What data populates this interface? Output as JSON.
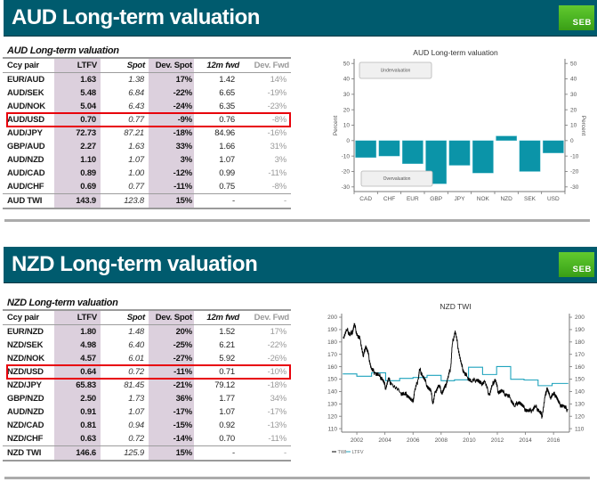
{
  "sections": [
    {
      "banner_title": "AUD Long-term valuation",
      "logo_text": "SEB",
      "table": {
        "title": "AUD Long-term valuation",
        "columns": [
          "Ccy pair",
          "LTFV",
          "Spot",
          "Dev. Spot",
          "12m fwd",
          "Dev. Fwd"
        ],
        "highlight": "AUD/USD",
        "rows": [
          [
            "EUR/AUD",
            "1.63",
            "1.38",
            "17%",
            "1.42",
            "14%"
          ],
          [
            "AUD/SEK",
            "5.48",
            "6.84",
            "-22%",
            "6.65",
            "-19%"
          ],
          [
            "AUD/NOK",
            "5.04",
            "6.43",
            "-24%",
            "6.35",
            "-23%"
          ],
          [
            "AUD/USD",
            "0.70",
            "0.77",
            "-9%",
            "0.76",
            "-8%"
          ],
          [
            "AUD/JPY",
            "72.73",
            "87.21",
            "-18%",
            "84.96",
            "-16%"
          ],
          [
            "GBP/AUD",
            "2.27",
            "1.63",
            "33%",
            "1.66",
            "31%"
          ],
          [
            "AUD/NZD",
            "1.10",
            "1.07",
            "3%",
            "1.07",
            "3%"
          ],
          [
            "AUD/CAD",
            "0.89",
            "1.00",
            "-12%",
            "0.99",
            "-11%"
          ],
          [
            "AUD/CHF",
            "0.69",
            "0.77",
            "-11%",
            "0.75",
            "-8%"
          ],
          [
            "AUD TWI",
            "143.9",
            "123.8",
            "15%",
            "-",
            "-"
          ]
        ]
      }
    },
    {
      "banner_title": "NZD Long-term valuation",
      "logo_text": "SEB",
      "table": {
        "title": "NZD Long-term valuation",
        "columns": [
          "Ccy pair",
          "LTFV",
          "Spot",
          "Dev. Spot",
          "12m fwd",
          "Dev. Fwd"
        ],
        "highlight": "NZD/USD",
        "rows": [
          [
            "EUR/NZD",
            "1.80",
            "1.48",
            "20%",
            "1.52",
            "17%"
          ],
          [
            "NZD/SEK",
            "4.98",
            "6.40",
            "-25%",
            "6.21",
            "-22%"
          ],
          [
            "NZD/NOK",
            "4.57",
            "6.01",
            "-27%",
            "5.92",
            "-26%"
          ],
          [
            "NZD/USD",
            "0.64",
            "0.72",
            "-11%",
            "0.71",
            "-10%"
          ],
          [
            "NZD/JPY",
            "65.83",
            "81.45",
            "-21%",
            "79.12",
            "-18%"
          ],
          [
            "GBP/NZD",
            "2.50",
            "1.73",
            "36%",
            "1.77",
            "34%"
          ],
          [
            "AUD/NZD",
            "0.91",
            "1.07",
            "-17%",
            "1.07",
            "-17%"
          ],
          [
            "NZD/CAD",
            "0.81",
            "0.94",
            "-15%",
            "0.92",
            "-13%"
          ],
          [
            "NZD/CHF",
            "0.63",
            "0.72",
            "-14%",
            "0.70",
            "-11%"
          ],
          [
            "NZD TWI",
            "146.6",
            "125.9",
            "15%",
            "-",
            "-"
          ]
        ]
      }
    }
  ],
  "colors": {
    "banner": "#005b6e",
    "logo": "#4ab322",
    "column_shade": "#dcd0dd",
    "highlight_box": "#e8000b",
    "bar": "#0b94a8",
    "twi_line": "#000000",
    "ltfv_line": "#1fa3bd"
  },
  "chart_data": [
    {
      "type": "bar",
      "title": "AUD Long-term valuation",
      "categories": [
        "CAD",
        "CHF",
        "EUR",
        "GBP",
        "JPY",
        "NOK",
        "NZD",
        "SEK",
        "USD"
      ],
      "values": [
        -11,
        -10,
        -15,
        -28,
        -16,
        -21,
        3,
        -20,
        -8
      ],
      "xlabel": "",
      "ylabel": "Percent",
      "ylabel_right": "Percent",
      "ylim": [
        -33,
        53
      ],
      "yticks": [
        -30,
        -20,
        -10,
        0,
        10,
        20,
        30,
        40,
        50
      ],
      "annotations": {
        "top": "Undervaluation",
        "bottom": "Overvaluation"
      },
      "grid": false,
      "legend": "none"
    },
    {
      "type": "line",
      "title": "NZD TWI",
      "xlabel": "",
      "ylabel": "",
      "xlim": [
        2000.92,
        2017.13
      ],
      "ylim": [
        107.2,
        202.9
      ],
      "xticks": [
        2002,
        2004,
        2006,
        2008,
        2010,
        2012,
        2014,
        2016
      ],
      "yticks": [
        110,
        120,
        130,
        140,
        150,
        160,
        170,
        180,
        190,
        200
      ],
      "grid": false,
      "legend": "bottom-left",
      "series": [
        {
          "name": "TWI",
          "points": [
            [
              2001.03,
              183
            ],
            [
              2001.3,
              190
            ],
            [
              2001.51,
              186
            ],
            [
              2001.68,
              188
            ],
            [
              2001.83,
              194
            ],
            [
              2002.04,
              185
            ],
            [
              2002.25,
              182
            ],
            [
              2002.46,
              168
            ],
            [
              2002.63,
              177
            ],
            [
              2002.82,
              170
            ],
            [
              2003.03,
              158
            ],
            [
              2003.31,
              155
            ],
            [
              2003.58,
              153
            ],
            [
              2003.84,
              150
            ],
            [
              2004.05,
              143
            ],
            [
              2004.26,
              150
            ],
            [
              2004.47,
              146
            ],
            [
              2005.1,
              139
            ],
            [
              2005.4,
              138
            ],
            [
              2005.63,
              137
            ],
            [
              2005.99,
              131
            ],
            [
              2006.11,
              140
            ],
            [
              2006.37,
              150
            ],
            [
              2006.47,
              158
            ],
            [
              2006.68,
              153
            ],
            [
              2007.0,
              145
            ],
            [
              2007.28,
              140
            ],
            [
              2007.42,
              130
            ],
            [
              2007.59,
              140
            ],
            [
              2007.84,
              145
            ],
            [
              2008.06,
              139
            ],
            [
              2008.27,
              143
            ],
            [
              2008.47,
              150
            ],
            [
              2008.69,
              160
            ],
            [
              2008.79,
              178
            ],
            [
              2009.0,
              189
            ],
            [
              2009.22,
              175
            ],
            [
              2009.43,
              162
            ],
            [
              2009.64,
              155
            ],
            [
              2009.85,
              152
            ],
            [
              2010.16,
              148
            ],
            [
              2010.59,
              150
            ],
            [
              2010.8,
              146
            ],
            [
              2011.11,
              148
            ],
            [
              2011.43,
              137
            ],
            [
              2011.64,
              145
            ],
            [
              2011.85,
              150
            ],
            [
              2012.06,
              140
            ],
            [
              2012.32,
              140
            ],
            [
              2012.7,
              137
            ],
            [
              2012.91,
              135
            ],
            [
              2013.23,
              128
            ],
            [
              2013.54,
              132
            ],
            [
              2013.86,
              127
            ],
            [
              2014.17,
              124
            ],
            [
              2014.49,
              125
            ],
            [
              2014.7,
              128
            ],
            [
              2015.02,
              124
            ],
            [
              2015.18,
              120
            ],
            [
              2015.39,
              135
            ],
            [
              2015.54,
              143
            ],
            [
              2015.75,
              135
            ],
            [
              2015.97,
              138
            ],
            [
              2016.18,
              137
            ],
            [
              2016.39,
              130
            ],
            [
              2016.7,
              128
            ],
            [
              2017.02,
              125
            ]
          ]
        },
        {
          "name": "LTFV",
          "step": "post",
          "points": [
            [
              2001.0,
              154.2
            ],
            [
              2002.0,
              152.3
            ],
            [
              2003.05,
              155.1
            ],
            [
              2004.05,
              148.7
            ],
            [
              2005.05,
              150.6
            ],
            [
              2006.0,
              151.3
            ],
            [
              2007.0,
              153.0
            ],
            [
              2008.0,
              148.7
            ],
            [
              2008.95,
              149.4
            ],
            [
              2009.95,
              159.6
            ],
            [
              2010.95,
              153.7
            ],
            [
              2011.95,
              160.1
            ],
            [
              2012.95,
              149.9
            ],
            [
              2013.9,
              149.3
            ],
            [
              2014.9,
              144.7
            ],
            [
              2015.9,
              146.5
            ],
            [
              2017.05,
              146.5
            ]
          ]
        }
      ]
    }
  ]
}
